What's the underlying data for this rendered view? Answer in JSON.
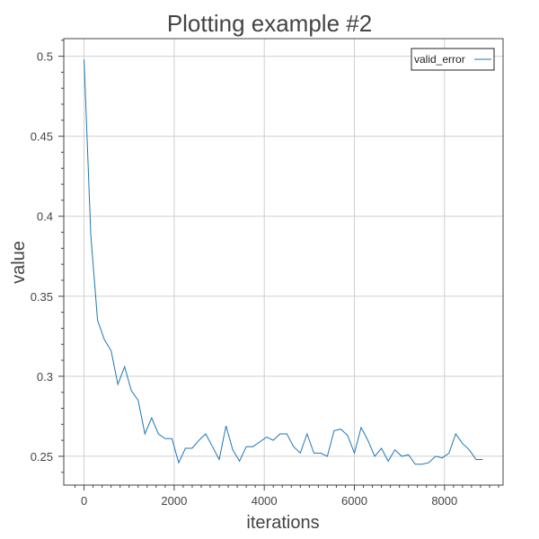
{
  "chart_data": {
    "type": "line",
    "title": "Plotting example #2",
    "xlabel": "iterations",
    "ylabel": "value",
    "xlim": [
      -450,
      9300
    ],
    "ylim": [
      0.232,
      0.511
    ],
    "xticks": [
      0,
      2000,
      4000,
      6000,
      8000
    ],
    "xtick_labels": [
      "0",
      "2000",
      "4000",
      "6000",
      "8000"
    ],
    "yticks": [
      0.25,
      0.3,
      0.35,
      0.4,
      0.45,
      0.5
    ],
    "ytick_labels": [
      "0.25",
      "0.3",
      "0.35",
      "0.4",
      "0.45",
      "0.5"
    ],
    "grid": true,
    "legend_position": "top-right",
    "series": [
      {
        "name": "valid_error",
        "color": "#1f77b4",
        "x": [
          0,
          150,
          300,
          450,
          600,
          750,
          900,
          1050,
          1200,
          1350,
          1500,
          1650,
          1800,
          1950,
          2100,
          2250,
          2400,
          2550,
          2700,
          2850,
          3000,
          3150,
          3300,
          3450,
          3600,
          3750,
          3900,
          4050,
          4200,
          4350,
          4500,
          4650,
          4800,
          4950,
          5100,
          5250,
          5400,
          5550,
          5700,
          5850,
          6000,
          6150,
          6300,
          6450,
          6600,
          6750,
          6900,
          7050,
          7200,
          7350,
          7500,
          7650,
          7800,
          7950,
          8100,
          8250,
          8400,
          8550,
          8700,
          8850
        ],
        "y": [
          0.498,
          0.388,
          0.335,
          0.323,
          0.316,
          0.295,
          0.306,
          0.291,
          0.285,
          0.264,
          0.274,
          0.264,
          0.261,
          0.261,
          0.246,
          0.255,
          0.255,
          0.26,
          0.264,
          0.256,
          0.248,
          0.269,
          0.254,
          0.247,
          0.256,
          0.256,
          0.259,
          0.262,
          0.26,
          0.264,
          0.264,
          0.256,
          0.252,
          0.264,
          0.252,
          0.252,
          0.25,
          0.266,
          0.267,
          0.263,
          0.252,
          0.268,
          0.26,
          0.25,
          0.255,
          0.247,
          0.254,
          0.25,
          0.251,
          0.245,
          0.245,
          0.246,
          0.25,
          0.249,
          0.252,
          0.264,
          0.258,
          0.254,
          0.248,
          0.248
        ]
      }
    ]
  }
}
